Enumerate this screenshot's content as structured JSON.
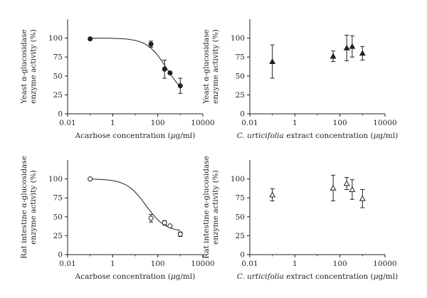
{
  "chart_data": [
    {
      "type": "scatter",
      "xscale": "log",
      "xlim": [
        0.01,
        10000
      ],
      "ylim": [
        0,
        125
      ],
      "xticks": [
        "0.01",
        "1",
        "100",
        "10000"
      ],
      "yticks": [
        "0",
        "25",
        "50",
        "75",
        "100"
      ],
      "ylabel_lines": [
        "Yeast α-glucosidase",
        "enzyme activity (%)"
      ],
      "xlabel_parts": [
        {
          "text": "Acarbose concentration (",
          "italic": false
        },
        {
          "text": "μ",
          "italic": true
        },
        {
          "text": "g/ml)",
          "italic": false
        }
      ],
      "marker": "circle-filled",
      "fit": {
        "type": "logistic",
        "top": 100,
        "bottom": 20,
        "ec50": 250,
        "hill": 1.0,
        "x_range": [
          0.1,
          1000
        ]
      },
      "points": [
        {
          "x": 0.1,
          "y": 99,
          "err": 0
        },
        {
          "x": 50,
          "y": 92,
          "err": 4
        },
        {
          "x": 200,
          "y": 59,
          "err": 12
        },
        {
          "x": 350,
          "y": 54,
          "err": 0
        },
        {
          "x": 1000,
          "y": 37,
          "err": 10
        }
      ]
    },
    {
      "type": "scatter",
      "xscale": "log",
      "xlim": [
        0.01,
        10000
      ],
      "ylim": [
        0,
        125
      ],
      "xticks": [
        "0.01",
        "1",
        "100",
        "10000"
      ],
      "yticks": [
        "0",
        "25",
        "50",
        "75",
        "100"
      ],
      "ylabel_lines": [
        "Yeast α-glucosidase",
        "enzyme activity (%)"
      ],
      "xlabel_parts": [
        {
          "text": "C. urticifolia",
          "italic": true
        },
        {
          "text": " extract concentration (",
          "italic": false
        },
        {
          "text": "μ",
          "italic": true
        },
        {
          "text": "g/ml)",
          "italic": false
        }
      ],
      "marker": "triangle-filled",
      "points": [
        {
          "x": 0.1,
          "y": 69,
          "err": 22
        },
        {
          "x": 50,
          "y": 76,
          "err": 7
        },
        {
          "x": 200,
          "y": 87,
          "err": 17
        },
        {
          "x": 350,
          "y": 89,
          "err": 14
        },
        {
          "x": 1000,
          "y": 80,
          "err": 9
        }
      ]
    },
    {
      "type": "scatter",
      "xscale": "log",
      "xlim": [
        0.01,
        10000
      ],
      "ylim": [
        0,
        125
      ],
      "xticks": [
        "0.01",
        "1",
        "100",
        "10000"
      ],
      "yticks": [
        "0",
        "25",
        "50",
        "75",
        "100"
      ],
      "ylabel_lines": [
        "Rat intestine α-glucosidase",
        "enzyme activity (%)"
      ],
      "xlabel_parts": [
        {
          "text": "Acarbose concentration (",
          "italic": false
        },
        {
          "text": "μ",
          "italic": true
        },
        {
          "text": "g/ml)",
          "italic": false
        }
      ],
      "marker": "circle-open",
      "fit": {
        "type": "logistic",
        "top": 100,
        "bottom": 30,
        "ec50": 30,
        "hill": 1.0,
        "x_range": [
          0.1,
          1000
        ]
      },
      "points": [
        {
          "x": 0.1,
          "y": 100,
          "err": 0
        },
        {
          "x": 50,
          "y": 48,
          "err": 5
        },
        {
          "x": 200,
          "y": 42,
          "err": 3
        },
        {
          "x": 350,
          "y": 38,
          "err": 0
        },
        {
          "x": 1000,
          "y": 27,
          "err": 3
        }
      ]
    },
    {
      "type": "scatter",
      "xscale": "log",
      "xlim": [
        0.01,
        10000
      ],
      "ylim": [
        0,
        125
      ],
      "xticks": [
        "0.01",
        "1",
        "100",
        "10000"
      ],
      "yticks": [
        "0",
        "25",
        "50",
        "75",
        "100"
      ],
      "ylabel_lines": [
        "Rat intestine α-glucosidase",
        "enzyme activity (%)"
      ],
      "xlabel_parts": [
        {
          "text": "C. urticifolia",
          "italic": true
        },
        {
          "text": " extract concentration (",
          "italic": false
        },
        {
          "text": "μ",
          "italic": true
        },
        {
          "text": "g/ml)",
          "italic": false
        }
      ],
      "marker": "triangle-open",
      "points": [
        {
          "x": 0.1,
          "y": 79,
          "err": 8
        },
        {
          "x": 50,
          "y": 88,
          "err": 17
        },
        {
          "x": 200,
          "y": 94,
          "err": 8
        },
        {
          "x": 350,
          "y": 86,
          "err": 13
        },
        {
          "x": 1000,
          "y": 74,
          "err": 12
        }
      ]
    }
  ]
}
